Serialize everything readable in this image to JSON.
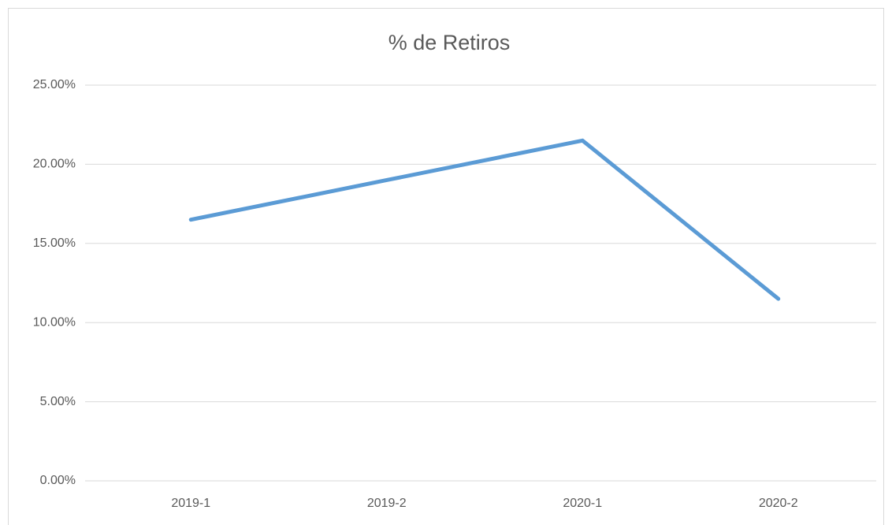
{
  "chart_data": {
    "type": "line",
    "title": "% de Retiros",
    "categories": [
      "2019-1",
      "2019-2",
      "2020-1",
      "2020-2"
    ],
    "series": [
      {
        "name": "% de Retiros",
        "color": "#5b9bd5",
        "values": [
          16.5,
          19.0,
          21.5,
          11.5
        ]
      }
    ],
    "ylim": [
      0,
      25
    ],
    "yticks": [
      {
        "value": 0,
        "label": "0.00%"
      },
      {
        "value": 5,
        "label": "5.00%"
      },
      {
        "value": 10,
        "label": "10.00%"
      },
      {
        "value": 15,
        "label": "15.00%"
      },
      {
        "value": 20,
        "label": "20.00%"
      },
      {
        "value": 25,
        "label": "25.00%"
      }
    ],
    "grid": true
  }
}
